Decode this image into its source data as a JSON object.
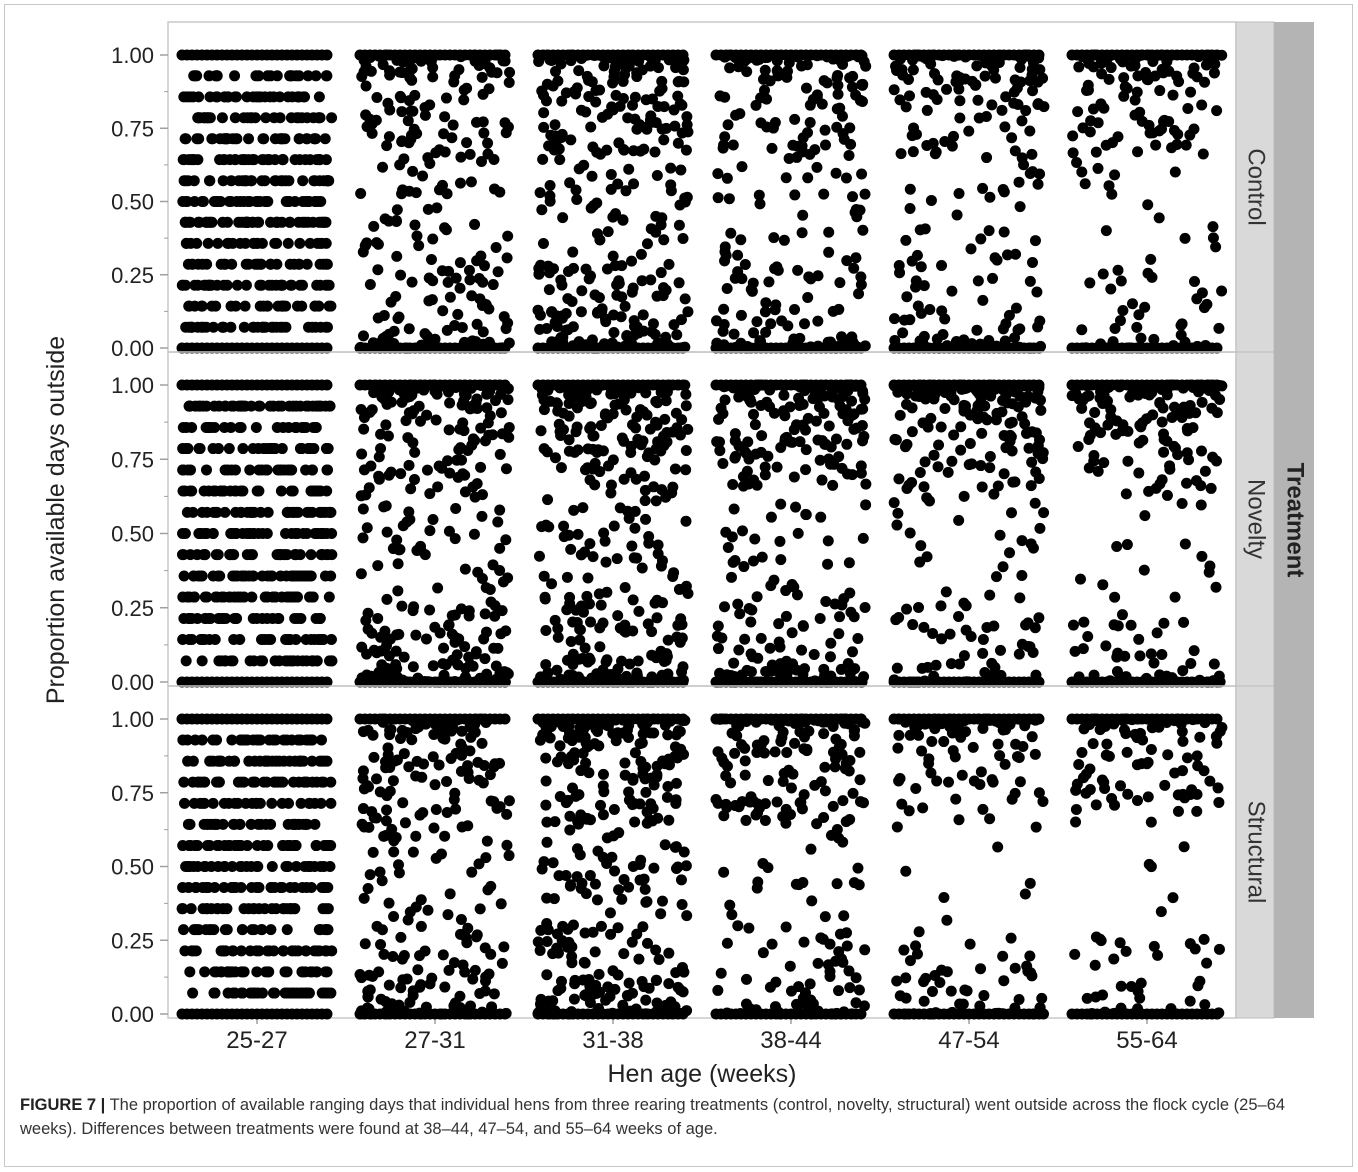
{
  "chart_data": {
    "type": "scatter",
    "xlabel": "Hen age (weeks)",
    "ylabel": "Proportion available days outside",
    "categories": [
      "25-27",
      "27-31",
      "31-38",
      "38-44",
      "47-54",
      "55-64"
    ],
    "ylim": [
      0,
      1
    ],
    "yticks": [
      "0.00",
      "0.25",
      "0.50",
      "0.75",
      "1.00"
    ],
    "facet_label": "Treatment",
    "facets": [
      "Control",
      "Novelty",
      "Structural"
    ],
    "grid": false,
    "colors": {
      "points": "#000000",
      "strip": "#d9d9d9",
      "outer_strip": "#b4b4b4",
      "axis": "#a0a0a0",
      "panel_divider": "#c8c8c8"
    },
    "point_levels_by_category": {
      "25-27": [
        0,
        0.071,
        0.143,
        0.214,
        0.286,
        0.357,
        0.429,
        0.5,
        0.571,
        0.643,
        0.714,
        0.786,
        0.857,
        0.929,
        1
      ],
      "other": "near-continuous values in [0, 1]"
    },
    "density_profile": {
      "Control": [
        {
          "category": "25-27",
          "spread": 1.0,
          "count": 420,
          "top": 0.08,
          "bottom": 0.12
        },
        {
          "category": "27-31",
          "spread": 1.0,
          "count": 230,
          "top": 0.25,
          "bottom": 0.18
        },
        {
          "category": "31-38",
          "spread": 1.0,
          "count": 300,
          "top": 0.28,
          "bottom": 0.2
        },
        {
          "category": "38-44",
          "spread": 1.0,
          "count": 220,
          "top": 0.4,
          "bottom": 0.2
        },
        {
          "category": "47-54",
          "spread": 1.0,
          "count": 200,
          "top": 0.45,
          "bottom": 0.2
        },
        {
          "category": "55-64",
          "spread": 1.0,
          "count": 160,
          "top": 0.55,
          "bottom": 0.2
        }
      ],
      "Novelty": [
        {
          "category": "25-27",
          "spread": 1.0,
          "count": 440,
          "top": 0.08,
          "bottom": 0.12
        },
        {
          "category": "27-31",
          "spread": 1.0,
          "count": 280,
          "top": 0.25,
          "bottom": 0.22
        },
        {
          "category": "31-38",
          "spread": 1.0,
          "count": 320,
          "top": 0.3,
          "bottom": 0.2
        },
        {
          "category": "38-44",
          "spread": 1.0,
          "count": 280,
          "top": 0.4,
          "bottom": 0.2
        },
        {
          "category": "47-54",
          "spread": 1.0,
          "count": 220,
          "top": 0.5,
          "bottom": 0.2
        },
        {
          "category": "55-64",
          "spread": 1.0,
          "count": 180,
          "top": 0.55,
          "bottom": 0.2
        }
      ],
      "Structural": [
        {
          "category": "25-27",
          "spread": 1.0,
          "count": 420,
          "top": 0.08,
          "bottom": 0.12
        },
        {
          "category": "27-31",
          "spread": 1.0,
          "count": 240,
          "top": 0.28,
          "bottom": 0.22
        },
        {
          "category": "31-38",
          "spread": 1.0,
          "count": 320,
          "top": 0.3,
          "bottom": 0.22
        },
        {
          "category": "38-44",
          "spread": 1.0,
          "count": 220,
          "top": 0.45,
          "bottom": 0.22
        },
        {
          "category": "47-54",
          "spread": 1.0,
          "count": 150,
          "top": 0.6,
          "bottom": 0.25
        },
        {
          "category": "55-64",
          "spread": 1.0,
          "count": 130,
          "top": 0.6,
          "bottom": 0.25
        }
      ]
    }
  },
  "caption": {
    "label": "FIGURE 7 |",
    "text": " The proportion of available ranging days that individual hens from three rearing treatments (control, novelty, structural) went outside across the flock cycle (25–64 weeks). Differences between treatments were found at 38–44, 47–54, and 55–64 weeks of age."
  }
}
